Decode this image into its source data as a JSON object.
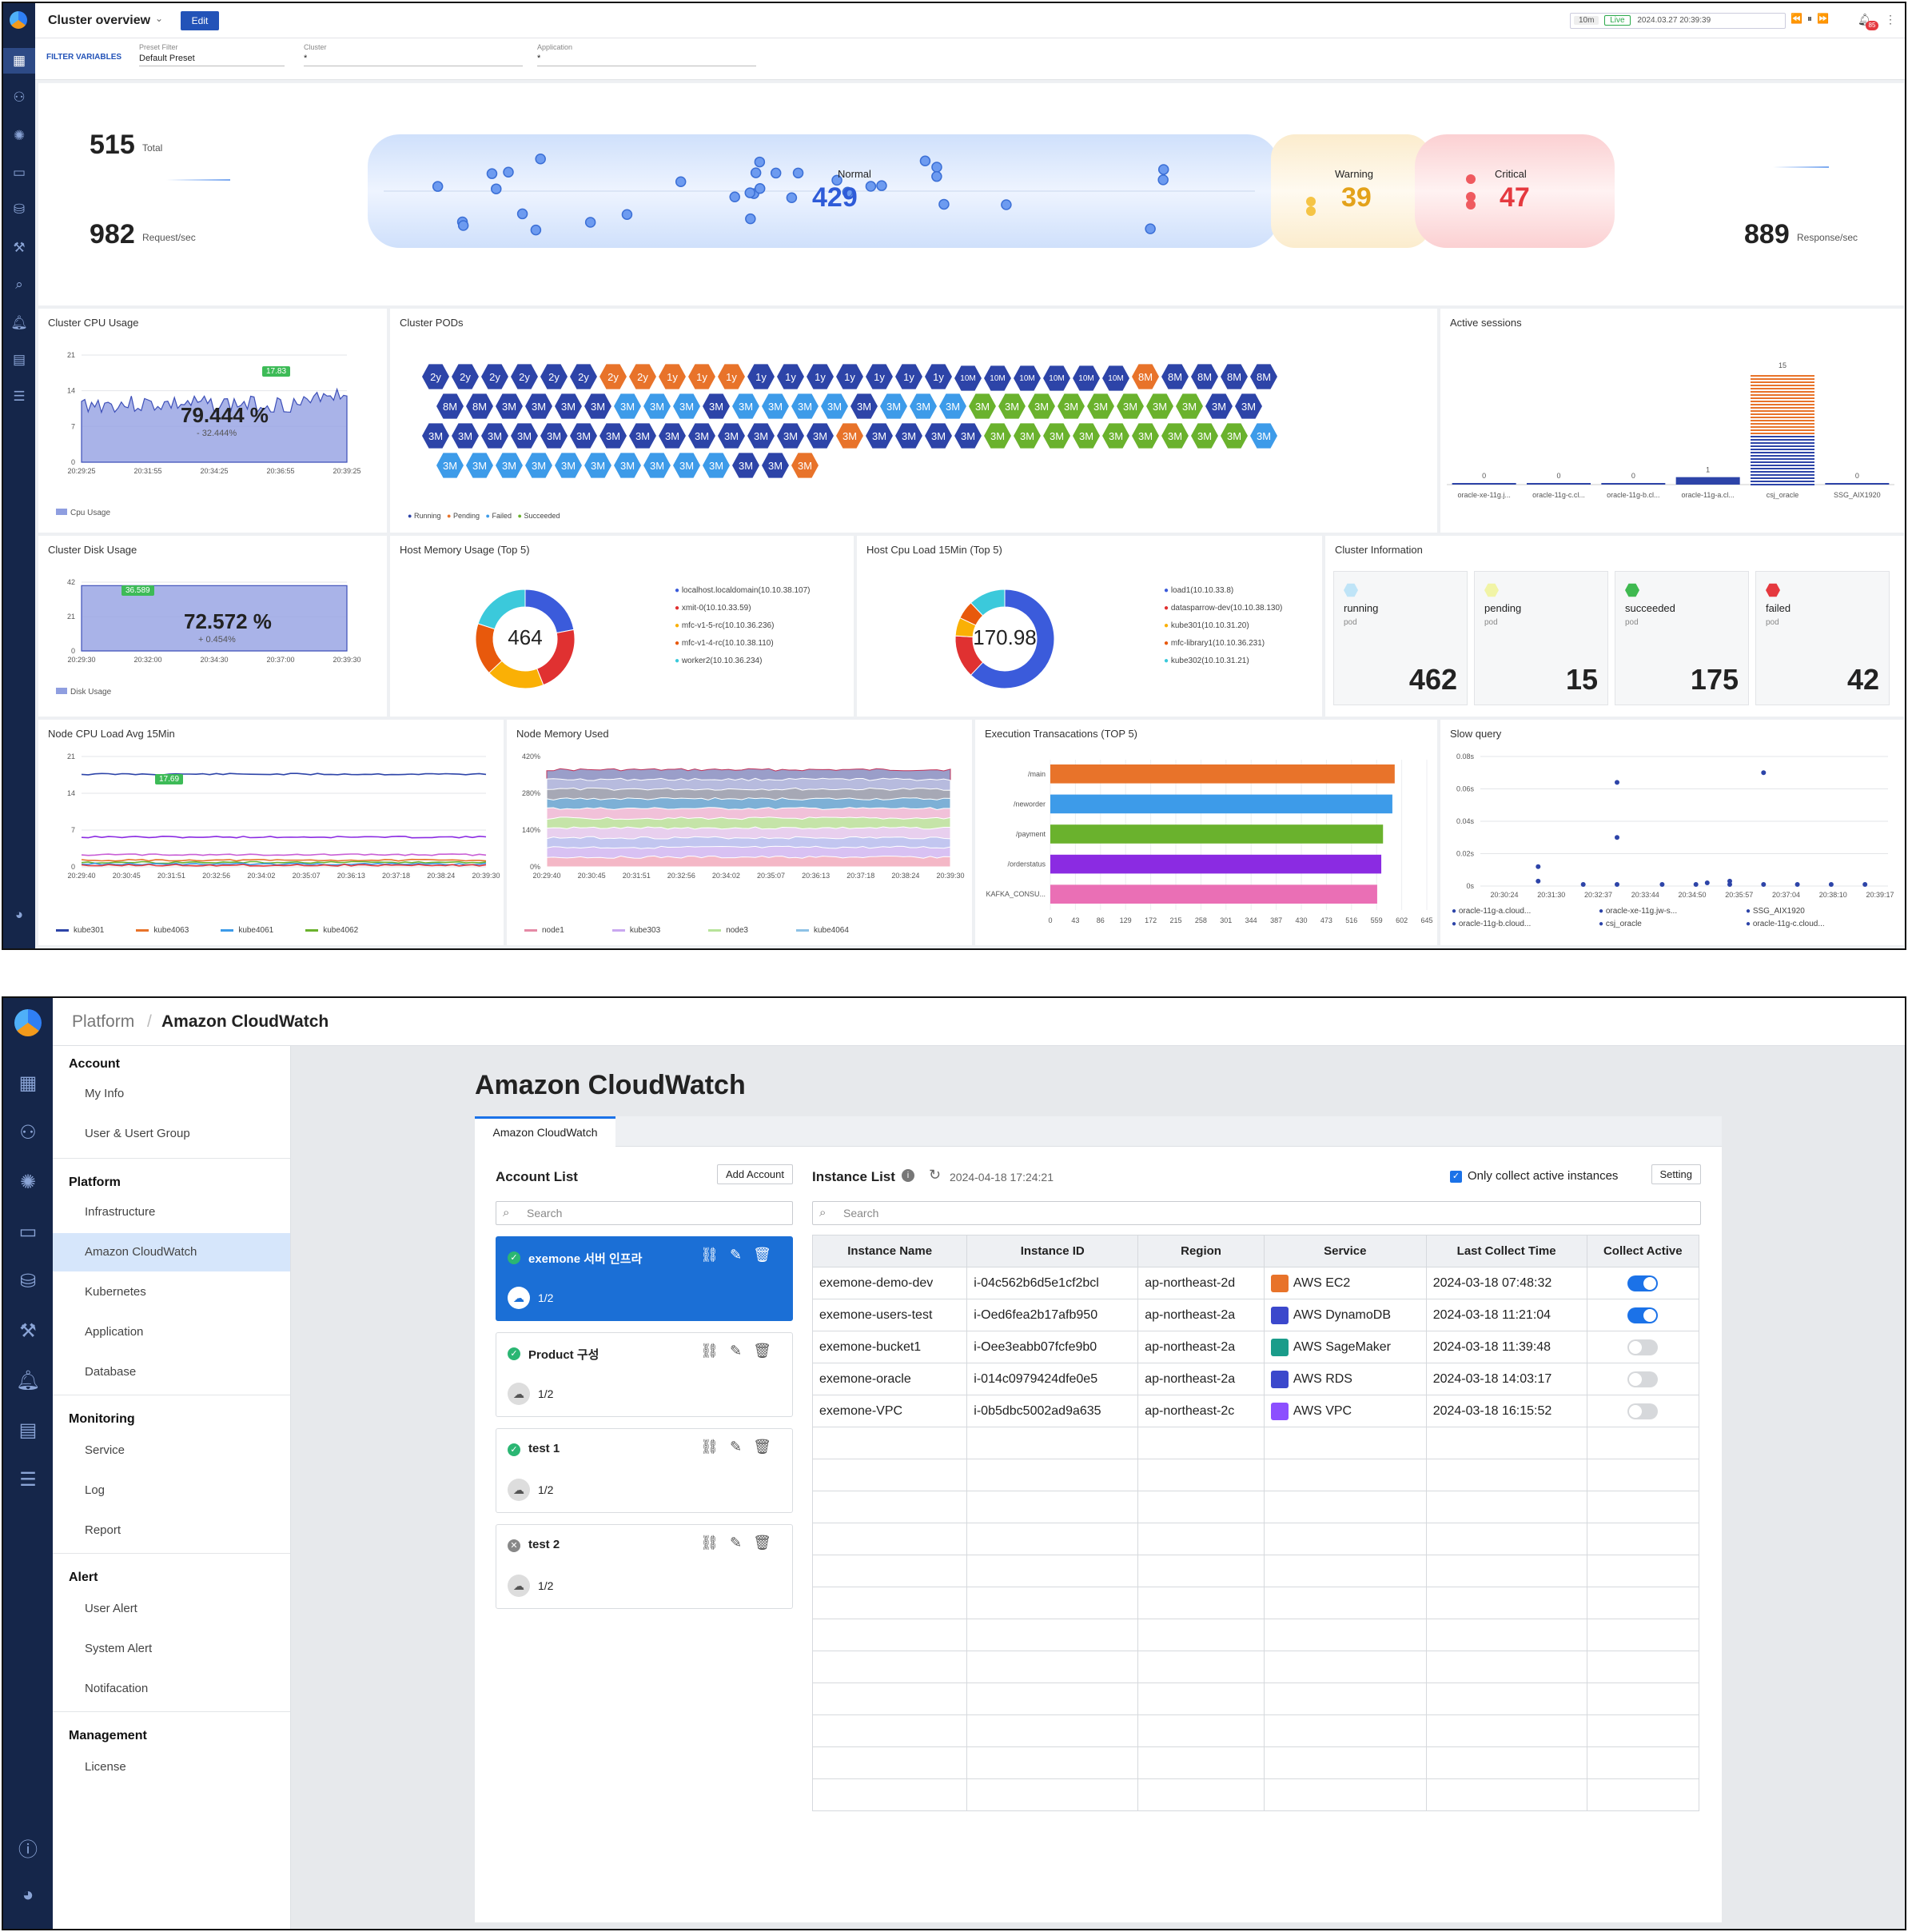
{
  "dash": {
    "title": "Cluster overview",
    "edit_label": "Edit",
    "range": "10m",
    "live": "Live",
    "datetime": "2024.03.27 20:39:39",
    "notif_count": "85",
    "filter_label": "FILTER VARIABLES",
    "filters": [
      {
        "label": "Preset Filter",
        "value": "Default Preset"
      },
      {
        "label": "Cluster",
        "value": "*"
      },
      {
        "label": "Application",
        "value": "*"
      }
    ],
    "flow": {
      "total": "515",
      "total_label": "Total",
      "req": "982",
      "req_label": "Request/sec",
      "resp": "889",
      "resp_label": "Response/sec",
      "normal_label": "Normal",
      "normal": "429",
      "warning_label": "Warning",
      "warning": "39",
      "critical_label": "Critical",
      "critical": "47"
    },
    "cpu": {
      "title": "Cluster CPU Usage",
      "value": "79.444 %",
      "delta": "- 32.444%",
      "peak": "17.83",
      "yticks": [
        "21",
        "14",
        "7",
        "0"
      ],
      "xticks": [
        "20:29:25",
        "20:31:55",
        "20:34:25",
        "20:36:55",
        "20:39:25"
      ],
      "legend": "Cpu Usage"
    },
    "pods": {
      "title": "Cluster PODs",
      "legend": [
        "Running",
        "Pending",
        "Failed",
        "Succeeded"
      ],
      "rows": [
        [
          "2y:r",
          "2y:r",
          "2y:r",
          "2y:r",
          "2y:r",
          "2y:r",
          "2y:p",
          "2y:p",
          "1y:p",
          "1y:p",
          "1y:p",
          "1y:r",
          "1y:r",
          "1y:r",
          "1y:r",
          "1y:r",
          "1y:r",
          "1y:r",
          "10M:r",
          "10M:r",
          "10M:r",
          "10M:r",
          "10M:r",
          "10M:r",
          "8M:p",
          "8M:r",
          "8M:r",
          "8M:r",
          "8M:r"
        ],
        [
          "8M:r",
          "8M:r",
          "3M:r",
          "3M:r",
          "3M:r",
          "3M:r",
          "3M:f",
          "3M:f",
          "3M:f",
          "3M:r",
          "3M:f",
          "3M:f",
          "3M:f",
          "3M:f",
          "3M:r",
          "3M:f",
          "3M:f",
          "3M:f",
          "3M:s",
          "3M:s",
          "3M:s",
          "3M:s",
          "3M:s",
          "3M:s",
          "3M:s",
          "3M:s",
          "3M:r",
          "3M:r"
        ],
        [
          "3M:r",
          "3M:r",
          "3M:r",
          "3M:r",
          "3M:r",
          "3M:r",
          "3M:r",
          "3M:r",
          "3M:r",
          "3M:r",
          "3M:r",
          "3M:r",
          "3M:r",
          "3M:r",
          "3M:p",
          "3M:r",
          "3M:r",
          "3M:r",
          "3M:r",
          "3M:s",
          "3M:s",
          "3M:s",
          "3M:s",
          "3M:s",
          "3M:s",
          "3M:s",
          "3M:s",
          "3M:s",
          "3M:f"
        ],
        [
          "3M:f",
          "3M:f",
          "3M:f",
          "3M:f",
          "3M:f",
          "3M:f",
          "3M:f",
          "3M:f",
          "3M:f",
          "3M:f",
          "3M:r",
          "3M:r",
          "3M:p"
        ]
      ]
    },
    "sessions": {
      "title": "Active sessions",
      "categories": [
        "oracle-xe-11g.j...",
        "oracle-11g-c.cl...",
        "oracle-11g-b.cl...",
        "oracle-11g-a.cl...",
        "csj_oracle",
        "SSG_AIX1920"
      ],
      "values": [
        0,
        0,
        0,
        1,
        15,
        0
      ]
    },
    "disk": {
      "title": "Cluster Disk Usage",
      "value": "72.572 %",
      "delta": "+ 0.454%",
      "peak": "36.589",
      "yticks": [
        "42",
        "21",
        "0"
      ],
      "xticks": [
        "20:29:30",
        "20:32:00",
        "20:34:30",
        "20:37:00",
        "20:39:30"
      ],
      "legend": "Disk Usage"
    },
    "hostmem": {
      "title": "Host Memory Usage (Top 5)",
      "center": "464",
      "legend": [
        "localhost.localdomain(10.10.38.107)",
        "xmit-0(10.10.33.59)",
        "mfc-v1-5-rc(10.10.36.236)",
        "mfc-v1-4-rc(10.10.38.110)",
        "worker2(10.10.36.234)"
      ],
      "colors": [
        "#3b5bdb",
        "#e03131",
        "#fab005",
        "#e8590c",
        "#3bc9db"
      ],
      "values": [
        22,
        22,
        19,
        17,
        20
      ]
    },
    "hostcpu": {
      "title": "Host Cpu Load 15Min (Top 5)",
      "center": "170.98",
      "legend": [
        "load1(10.10.33.8)",
        "datasparrow-dev(10.10.38.130)",
        "kube301(10.10.31.20)",
        "mfc-library1(10.10.36.231)",
        "kube302(10.10.31.21)"
      ],
      "colors": [
        "#3b5bdb",
        "#e03131",
        "#fab005",
        "#e8590c",
        "#3bc9db"
      ],
      "values": [
        62,
        14,
        6,
        6,
        12
      ]
    },
    "info": {
      "title": "Cluster Information",
      "pod_word": "pod",
      "cards": [
        {
          "name": "running",
          "value": "462",
          "color": "#bfe4f7"
        },
        {
          "name": "pending",
          "value": "15",
          "color": "#f1f4a6"
        },
        {
          "name": "succeeded",
          "value": "175",
          "color": "#3fb950"
        },
        {
          "name": "failed",
          "value": "42",
          "color": "#e5393f"
        }
      ]
    },
    "nodecpu": {
      "title": "Node CPU Load Avg 15Min",
      "peak": "17.69",
      "yticks": [
        "21",
        "14",
        "7",
        "0"
      ],
      "xticks": [
        "20:29:40",
        "20:30:45",
        "20:31:51",
        "20:32:56",
        "20:34:02",
        "20:35:07",
        "20:36:13",
        "20:37:18",
        "20:38:24",
        "20:39:30"
      ],
      "legend": [
        "kube301",
        "kube4063",
        "kube4061",
        "kube4062"
      ]
    },
    "nodemem": {
      "title": "Node Memory Used",
      "yticks": [
        "420%",
        "280%",
        "140%",
        "0%"
      ],
      "xticks": [
        "20:29:40",
        "20:30:45",
        "20:31:51",
        "20:32:56",
        "20:34:02",
        "20:35:07",
        "20:36:13",
        "20:37:18",
        "20:38:24",
        "20:39:30"
      ],
      "legend": [
        "node1",
        "kube303",
        "node3",
        "kube4064"
      ]
    },
    "exec": {
      "title": "Execution Transacations (TOP 5)",
      "categories": [
        "/main",
        "/neworder",
        "/payment",
        "/orderstatus",
        "KAFKA_CONSU..."
      ],
      "values": [
        590,
        586,
        570,
        567,
        560
      ],
      "colors": [
        "#e8732a",
        "#3d9be9",
        "#6ab22d",
        "#8b2be2",
        "#ea6fb5"
      ],
      "xticks": [
        "0",
        "43",
        "86",
        "129",
        "172",
        "215",
        "258",
        "301",
        "344",
        "387",
        "430",
        "473",
        "516",
        "559",
        "602",
        "645"
      ]
    },
    "slow": {
      "title": "Slow query",
      "yticks": [
        "0.08s",
        "0.06s",
        "0.04s",
        "0.02s",
        "0s"
      ],
      "xticks": [
        "20:30:24",
        "20:31:30",
        "20:32:37",
        "20:33:44",
        "20:34:50",
        "20:35:57",
        "20:37:04",
        "20:38:10",
        "20:39:17"
      ],
      "legend": [
        "oracle-11g-a.cloud...",
        "oracle-xe-11g.jw-s...",
        "SSG_AIX1920",
        "oracle-11g-b.cloud...",
        "csj_oracle",
        "oracle-11g-c.cloud..."
      ]
    }
  },
  "cw": {
    "breadcrumb_root": "Platform",
    "breadcrumb_sep": "/",
    "breadcrumb_current": "Amazon CloudWatch",
    "page_title": "Amazon CloudWatch",
    "tab": "Amazon CloudWatch",
    "menu": {
      "account": "Account",
      "my_info": "My Info",
      "users": "User & Usert Group",
      "platform": "Platform",
      "infra": "Infrastructure",
      "cloudwatch": "Amazon CloudWatch",
      "kube": "Kubernetes",
      "app": "Application",
      "db": "Database",
      "monitoring": "Monitoring",
      "service": "Service",
      "log": "Log",
      "report": "Report",
      "alert": "Alert",
      "user_alert": "User Alert",
      "system_alert": "System Alert",
      "notification": "Notifacation",
      "management": "Management",
      "license": "License"
    },
    "account_list": {
      "title": "Account List",
      "add": "Add Account",
      "search": "Search",
      "items": [
        {
          "name": "exemone 서버 인프라",
          "count": "1/2"
        },
        {
          "name": "Product 구성",
          "count": "1/2"
        },
        {
          "name": "test 1",
          "count": "1/2"
        },
        {
          "name": "test 2",
          "count": "1/2"
        }
      ]
    },
    "instance_list": {
      "title": "Instance List",
      "updated": "2024-04-18 17:24:21",
      "only_active": "Only collect active instances",
      "setting": "Setting",
      "search": "Search",
      "headers": [
        "Instance Name",
        "Instance ID",
        "Region",
        "Service",
        "Last Collect Time",
        "Collect Active"
      ],
      "rows": [
        {
          "name": "exemone-demo-dev",
          "id": "i-04c562b6d5e1cf2bcl",
          "region": "ap-northeast-2d",
          "service": "AWS EC2",
          "time": "2024-03-18 07:48:32",
          "active": true,
          "color": "#e8732a"
        },
        {
          "name": "exemone-users-test",
          "id": "i-Oed6fea2b17afb950",
          "region": "ap-northeast-2a",
          "service": "AWS DynamoDB",
          "time": "2024-03-18 11:21:04",
          "active": true,
          "color": "#3b48cc"
        },
        {
          "name": "exemone-bucket1",
          "id": "i-Oee3eabb07fcfe9b0",
          "region": "ap-northeast-2a",
          "service": "AWS SageMaker",
          "time": "2024-03-18 11:39:48",
          "active": false,
          "color": "#1a9c8a"
        },
        {
          "name": "exemone-oracle",
          "id": "i-014c0979424dfe0e5",
          "region": "ap-northeast-2a",
          "service": "AWS RDS",
          "time": "2024-03-18 14:03:17",
          "active": false,
          "color": "#3b48cc"
        },
        {
          "name": "exemone-VPC",
          "id": "i-0b5dbc5002ad9a635",
          "region": "ap-northeast-2c",
          "service": "AWS VPC",
          "time": "2024-03-18 16:15:52",
          "active": false,
          "color": "#8c4fff"
        }
      ]
    }
  }
}
